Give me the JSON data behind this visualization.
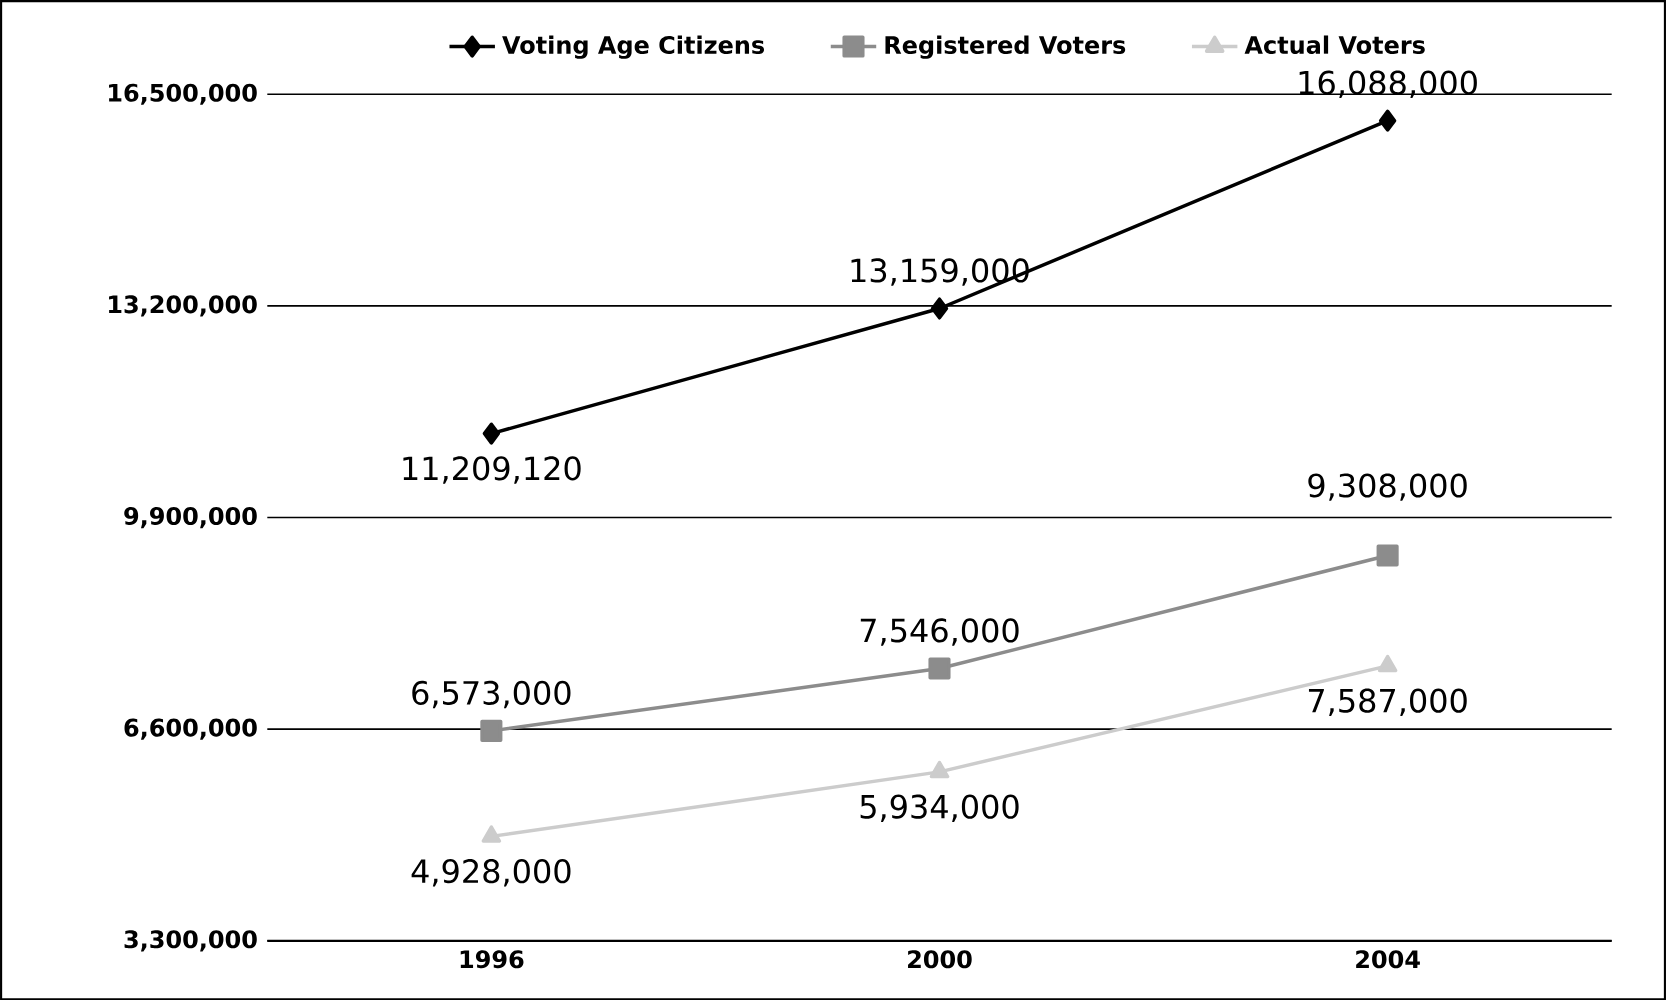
{
  "chart_data": {
    "type": "line",
    "categories": [
      "1996",
      "2000",
      "2004"
    ],
    "series": [
      {
        "name": "Voting Age Citizens",
        "color": "#000000",
        "marker": "diamond",
        "values": [
          11209120,
          13159000,
          16088000
        ],
        "value_labels": [
          "11,209,120",
          "13,159,000",
          "16,088,000"
        ]
      },
      {
        "name": "Registered Voters",
        "color": "#8c8c8c",
        "marker": "square",
        "values": [
          6573000,
          7546000,
          9308000
        ],
        "value_labels": [
          "6,573,000",
          "7,546,000",
          "9,308,000"
        ]
      },
      {
        "name": "Actual Voters",
        "color": "#cccccc",
        "marker": "triangle",
        "values": [
          4928000,
          5934000,
          7587000
        ],
        "value_labels": [
          "4,928,000",
          "5,934,000",
          "7,587,000"
        ]
      }
    ],
    "ylim": [
      3300000,
      16500000
    ],
    "yticks": [
      {
        "value": 3300000,
        "label": "3,300,000"
      },
      {
        "value": 6600000,
        "label": "6,600,000"
      },
      {
        "value": 9900000,
        "label": "9,900,000"
      },
      {
        "value": 13200000,
        "label": "13,200,000"
      },
      {
        "value": 16500000,
        "label": "16,500,000"
      }
    ],
    "grid": "y",
    "legend": "top"
  }
}
